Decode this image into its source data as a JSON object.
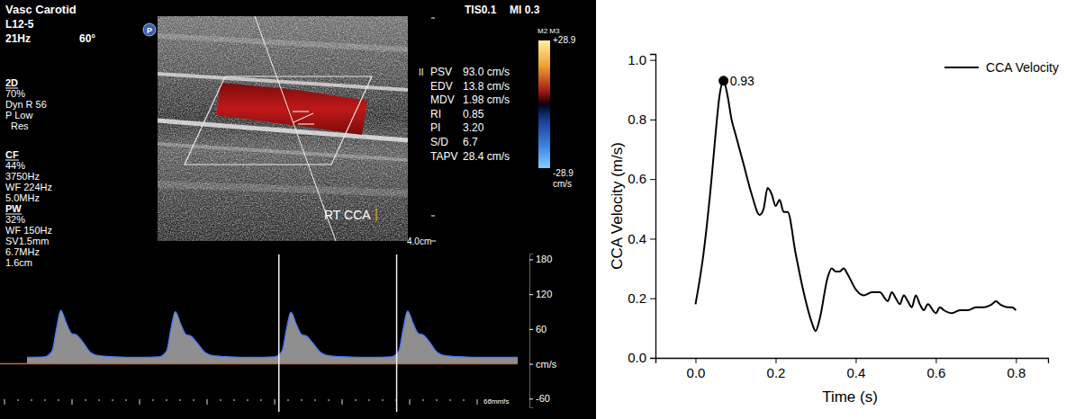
{
  "ultrasound": {
    "probe": {
      "preset": "Vasc Carotid",
      "transducer": "L12-5",
      "frame_rate": "21Hz",
      "angle": "60°"
    },
    "badge": "P",
    "modes": [
      {
        "name": "2D",
        "params": [
          "70%",
          "Dyn R 56",
          "P Low",
          "Res"
        ]
      },
      {
        "name": "CF",
        "params": [
          "44%",
          "3750Hz",
          "WF 224Hz",
          "5.0MHz"
        ]
      },
      {
        "name": "PW",
        "params": [
          "32%",
          "WF 150Hz",
          "SV1.5mm",
          "6.7MHz",
          "1.6cm"
        ]
      }
    ],
    "indices": [
      "TIS0.1",
      "MI 0.3"
    ],
    "freeze": "II",
    "measurements": [
      {
        "label": "PSV",
        "value": "93.0 cm/s"
      },
      {
        "label": "EDV",
        "value": "13.8 cm/s"
      },
      {
        "label": "MDV",
        "value": "1.98 cm/s"
      },
      {
        "label": "RI",
        "value": "0.85"
      },
      {
        "label": "PI",
        "value": "3.20"
      },
      {
        "label": "S/D",
        "value": "6.7"
      },
      {
        "label": "TAPV",
        "value": "28.4 cm/s"
      }
    ],
    "color_scale": {
      "label": "M2 M3",
      "max": "+28.9",
      "min": "-28.9",
      "unit": "cm/s"
    },
    "vessel_label": "RT CCA",
    "depth": "4.0cm",
    "spectral": {
      "xlim": [
        0,
        4.5
      ],
      "ylim": [
        -75,
        190
      ],
      "yticks": [
        180,
        120,
        60,
        {
          "value": 0,
          "label": "cm/s"
        },
        -60
      ],
      "x": [
        0,
        0.16,
        0.23,
        0.27,
        0.31,
        0.36,
        0.41,
        0.45,
        0.51,
        0.58,
        0.66,
        0.81,
        1.01,
        1.21,
        1.28,
        1.32,
        1.36,
        1.41,
        1.46,
        1.5,
        1.56,
        1.63,
        1.71,
        1.86,
        2.07,
        2.27,
        2.34,
        2.38,
        2.42,
        2.47,
        2.52,
        2.56,
        2.62,
        2.69,
        2.77,
        2.92,
        3.14,
        3.34,
        3.41,
        3.45,
        3.49,
        3.54,
        3.59,
        3.63,
        3.69,
        3.76,
        3.84,
        3.99,
        4.2,
        4.5
      ],
      "values": [
        11,
        12,
        22,
        60,
        92,
        70,
        52,
        50,
        38,
        20,
        14,
        12,
        11,
        12,
        22,
        60,
        90,
        68,
        50,
        48,
        36,
        20,
        14,
        12,
        11,
        12,
        22,
        60,
        89,
        68,
        50,
        48,
        36,
        20,
        14,
        12,
        11,
        12,
        22,
        60,
        91,
        70,
        52,
        50,
        38,
        20,
        14,
        12,
        11,
        11
      ],
      "cursors": [
        2.31,
        3.39
      ],
      "sweep_speed": "66mm/s"
    }
  },
  "chart_data": {
    "type": "line",
    "xlabel": "Time (s)",
    "ylabel": "CCA Velocity (m/s)",
    "x": [
      0,
      0.02,
      0.04,
      0.05,
      0.06,
      0.07,
      0.08,
      0.09,
      0.1,
      0.12,
      0.14,
      0.16,
      0.17,
      0.18,
      0.19,
      0.2,
      0.21,
      0.22,
      0.23,
      0.25,
      0.27,
      0.29,
      0.3,
      0.31,
      0.33,
      0.34,
      0.35,
      0.36,
      0.37,
      0.38,
      0.4,
      0.42,
      0.44,
      0.46,
      0.48,
      0.49,
      0.5,
      0.51,
      0.52,
      0.53,
      0.54,
      0.55,
      0.56,
      0.57,
      0.58,
      0.6,
      0.61,
      0.62,
      0.64,
      0.66,
      0.68,
      0.7,
      0.72,
      0.74,
      0.75,
      0.76,
      0.78,
      0.79,
      0.8
    ],
    "series": [
      {
        "name": "CCA Velocity",
        "color": "#000000",
        "values": [
          0.18,
          0.35,
          0.6,
          0.75,
          0.88,
          0.93,
          0.88,
          0.8,
          0.75,
          0.65,
          0.55,
          0.48,
          0.5,
          0.57,
          0.55,
          0.51,
          0.53,
          0.49,
          0.49,
          0.35,
          0.22,
          0.12,
          0.09,
          0.13,
          0.27,
          0.3,
          0.29,
          0.29,
          0.3,
          0.28,
          0.23,
          0.21,
          0.22,
          0.22,
          0.19,
          0.22,
          0.2,
          0.18,
          0.21,
          0.19,
          0.17,
          0.21,
          0.18,
          0.16,
          0.18,
          0.15,
          0.17,
          0.16,
          0.15,
          0.16,
          0.16,
          0.17,
          0.17,
          0.18,
          0.19,
          0.18,
          0.17,
          0.17,
          0.16
        ]
      }
    ],
    "annotations": [
      {
        "x": 0.07,
        "y": 0.93,
        "label": "0.93"
      }
    ],
    "xlim": [
      -0.1,
      0.88
    ],
    "ylim": [
      0,
      1.02
    ],
    "xticks": [
      {
        "value": 0,
        "label": "0.0"
      },
      0.2,
      0.4,
      0.6,
      0.8
    ],
    "yticks": [
      {
        "value": 0,
        "label": "0.0"
      },
      0.2,
      0.4,
      0.6,
      0.8,
      {
        "value": 1,
        "label": "1.0"
      }
    ],
    "grid": false,
    "legend": "upper right"
  }
}
